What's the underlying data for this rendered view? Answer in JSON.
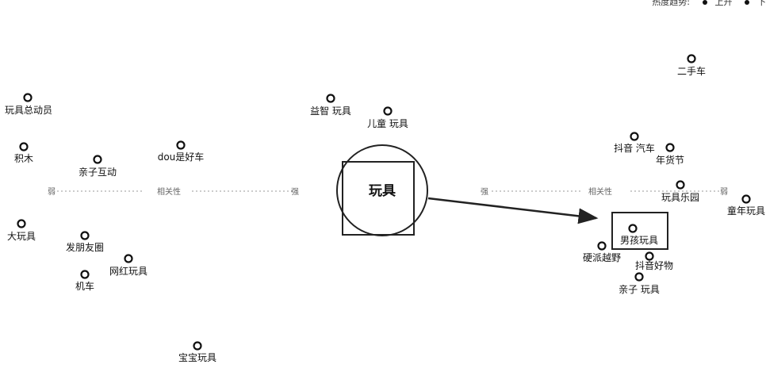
{
  "legend": {
    "title": "热度趋势:",
    "up": "上升",
    "down": "下"
  },
  "center": {
    "label": "玩具"
  },
  "axis": {
    "left": {
      "far": "弱",
      "mid": "相关性",
      "near": "强"
    },
    "right": {
      "near": "强",
      "mid": "相关性",
      "far": "弱"
    }
  },
  "nodes": [
    {
      "id": "toy-mobilization",
      "label": "玩具总动员"
    },
    {
      "id": "building-blocks",
      "label": "积木"
    },
    {
      "id": "parent-child-interaction",
      "label": "亲子互动"
    },
    {
      "id": "dou-good-car",
      "label": "dou是好车"
    },
    {
      "id": "educational-toys",
      "label": "益智 玩具"
    },
    {
      "id": "kids-toys",
      "label": "儿童 玩具"
    },
    {
      "id": "big-toys",
      "label": "大玩具"
    },
    {
      "id": "friends-circle",
      "label": "发朋友圈"
    },
    {
      "id": "influencer-toys",
      "label": "网红玩具"
    },
    {
      "id": "motorcycle",
      "label": "机车"
    },
    {
      "id": "baby-toys",
      "label": "宝宝玩具"
    },
    {
      "id": "used-car",
      "label": "二手车"
    },
    {
      "id": "douyin-car",
      "label": "抖音 汽车"
    },
    {
      "id": "new-year-festival",
      "label": "年货节"
    },
    {
      "id": "toy-park",
      "label": "玩具乐园"
    },
    {
      "id": "childhood-toys",
      "label": "童年玩具"
    },
    {
      "id": "boy-toys",
      "label": "男孩玩具"
    },
    {
      "id": "hardcore-offroad",
      "label": "硬派越野"
    },
    {
      "id": "douyin-good-stuff",
      "label": "抖音好物"
    },
    {
      "id": "parent-child-toys",
      "label": "亲子 玩具"
    }
  ]
}
